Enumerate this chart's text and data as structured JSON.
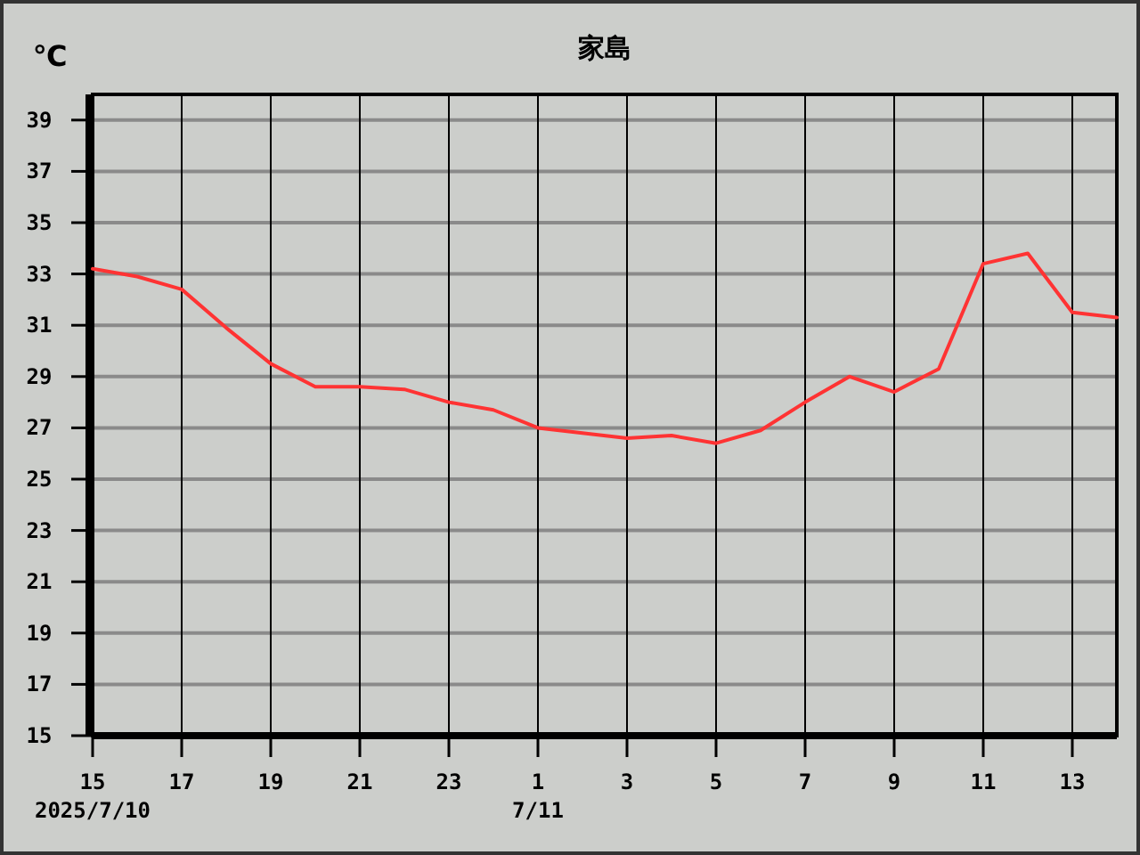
{
  "chart_data": {
    "type": "line",
    "title": "家島",
    "ylabel": "℃",
    "x": [
      "2025-07-10T15:00",
      "2025-07-10T16:00",
      "2025-07-10T17:00",
      "2025-07-10T18:00",
      "2025-07-10T19:00",
      "2025-07-10T20:00",
      "2025-07-10T21:00",
      "2025-07-10T22:00",
      "2025-07-10T23:00",
      "2025-07-11T00:00",
      "2025-07-11T01:00",
      "2025-07-11T02:00",
      "2025-07-11T03:00",
      "2025-07-11T04:00",
      "2025-07-11T05:00",
      "2025-07-11T06:00",
      "2025-07-11T07:00",
      "2025-07-11T08:00",
      "2025-07-11T09:00",
      "2025-07-11T10:00",
      "2025-07-11T11:00",
      "2025-07-11T12:00",
      "2025-07-11T13:00",
      "2025-07-11T14:00"
    ],
    "series": [
      {
        "color": "#ff3333",
        "values": [
          33.2,
          32.9,
          32.4,
          30.9,
          29.5,
          28.6,
          28.6,
          28.5,
          28.0,
          27.7,
          27.0,
          26.8,
          26.6,
          26.7,
          26.4,
          26.9,
          28.0,
          29.0,
          28.4,
          29.3,
          33.4,
          33.8,
          31.5,
          31.3
        ]
      }
    ],
    "xlim": [
      "2025-07-10T15:00",
      "2025-07-11T14:00"
    ],
    "xticks": [
      {
        "value": "2025-07-10T15:00",
        "label": "15\n2025/7/10"
      },
      {
        "value": "2025-07-10T17:00",
        "label": "17"
      },
      {
        "value": "2025-07-10T19:00",
        "label": "19"
      },
      {
        "value": "2025-07-10T21:00",
        "label": "21"
      },
      {
        "value": "2025-07-10T23:00",
        "label": "23"
      },
      {
        "value": "2025-07-11T01:00",
        "label": "1\n7/11"
      },
      {
        "value": "2025-07-11T03:00",
        "label": "3"
      },
      {
        "value": "2025-07-11T05:00",
        "label": "5"
      },
      {
        "value": "2025-07-11T07:00",
        "label": "7"
      },
      {
        "value": "2025-07-11T09:00",
        "label": "9"
      },
      {
        "value": "2025-07-11T11:00",
        "label": "11"
      },
      {
        "value": "2025-07-11T13:00",
        "label": "13"
      }
    ],
    "ylim": [
      15,
      40
    ],
    "yticks": [
      15,
      17,
      19,
      21,
      23,
      25,
      27,
      29,
      31,
      33,
      35,
      37,
      39
    ],
    "grid": true,
    "marker": "none",
    "line_style": "solid"
  }
}
